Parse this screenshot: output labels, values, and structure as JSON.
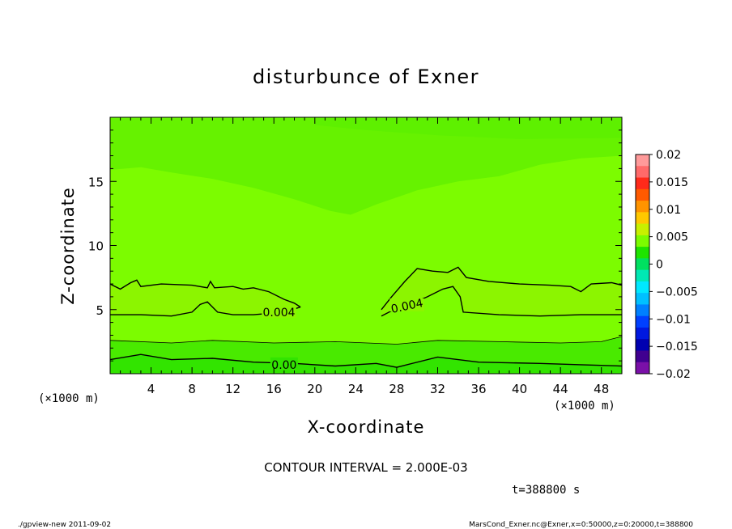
{
  "chart_data": {
    "type": "contour",
    "title": "disturbunce of Exner",
    "xlabel": "X-coordinate",
    "ylabel": "Z-coordinate",
    "x_unit": "(×1000 m)",
    "z_unit": "(×1000 m)",
    "xlim": [
      0,
      50
    ],
    "zlim": [
      0,
      20
    ],
    "x_ticks": [
      "4",
      "8",
      "12",
      "16",
      "20",
      "24",
      "28",
      "32",
      "36",
      "40",
      "44",
      "48"
    ],
    "z_ticks": [
      "5",
      "10",
      "15"
    ],
    "colorbar": {
      "range": [
        -0.02,
        0.02
      ],
      "labels": [
        "0.02",
        "0.015",
        "0.01",
        "0.005",
        "0",
        "−0.005",
        "−0.01",
        "−0.015",
        "−0.02"
      ],
      "colors": [
        "#ff9a9a",
        "#ff6a6a",
        "#ff2a1a",
        "#ff5a00",
        "#ff9400",
        "#ffc800",
        "#c8f000",
        "#7cfc00",
        "#1ee400",
        "#00e060",
        "#00e8b4",
        "#00e8ff",
        "#00c0ff",
        "#0080ff",
        "#0040ff",
        "#0018e0",
        "#0000b0",
        "#400090",
        "#7a10a8"
      ]
    },
    "contour_labels": [
      {
        "text": "0.004",
        "x": 16.5,
        "z": 4.8
      },
      {
        "text": "0.004",
        "x": 29.0,
        "z": 5.3
      },
      {
        "text": "0.00",
        "x": 17.0,
        "z": 0.7
      }
    ],
    "contour_interval_text": "CONTOUR INTERVAL = 2.000E-03",
    "time_text": "t=388800 s"
  },
  "footer": {
    "left": "./gpview-new   2011-09-02",
    "right": "MarsCond_Exner.nc@Exner,x=0:50000,z=0:20000,t=388800"
  }
}
